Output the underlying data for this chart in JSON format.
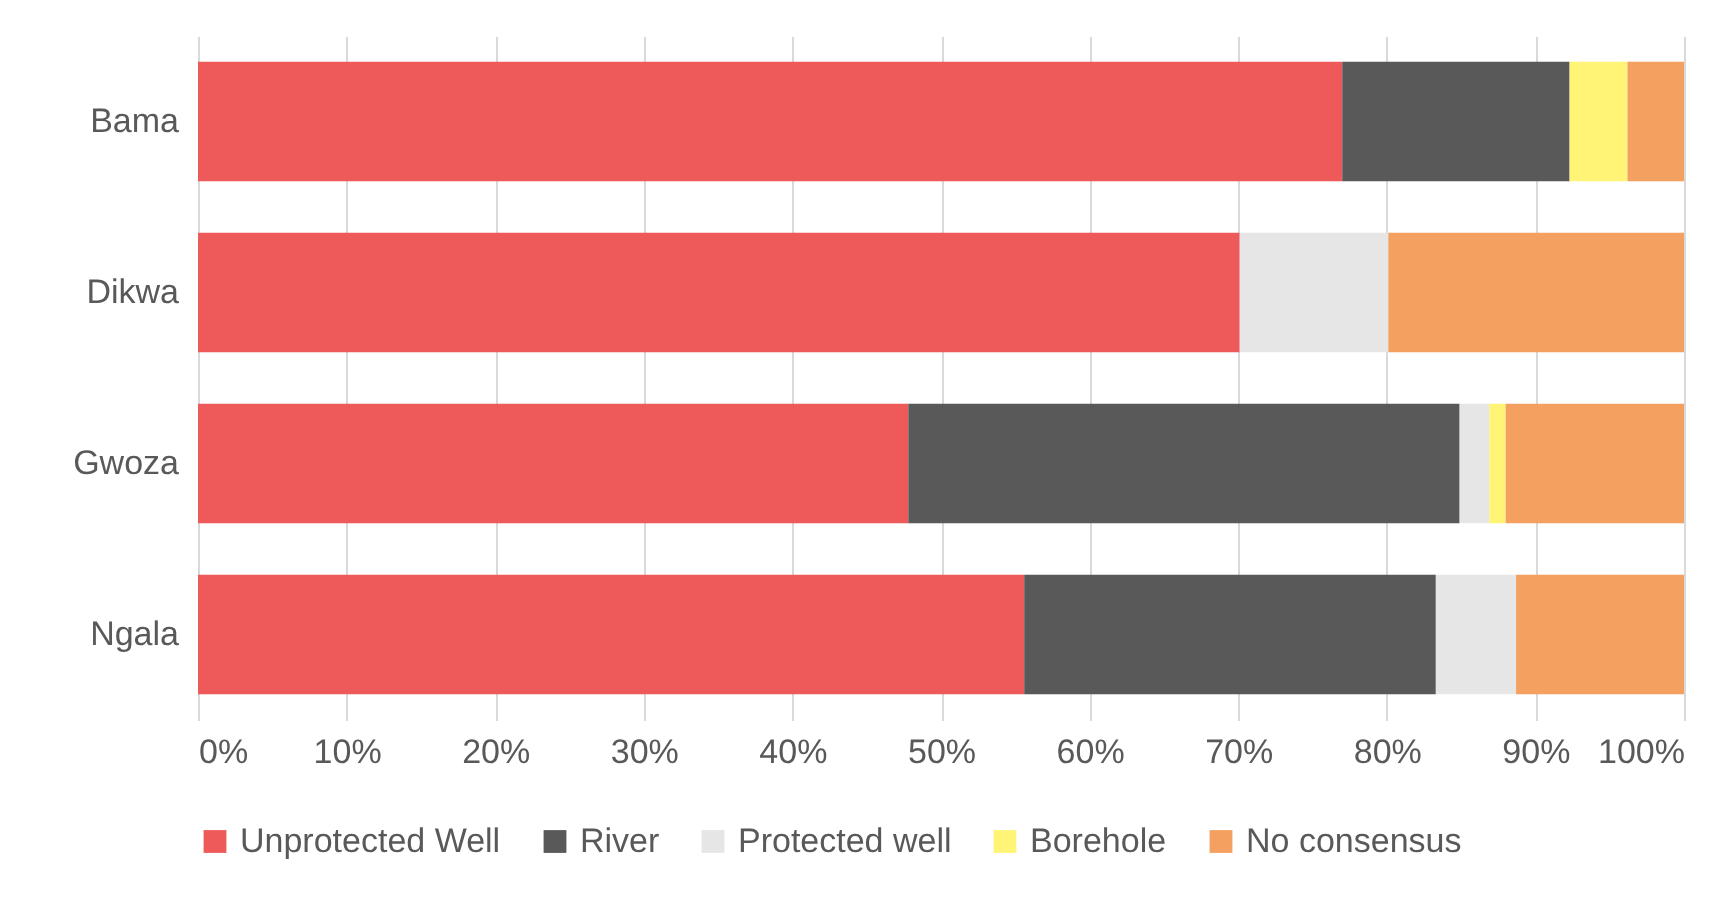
{
  "chart_data": {
    "type": "bar",
    "orientation": "horizontal",
    "stacked": true,
    "categories": [
      "Bama",
      "Dikwa",
      "Gwoza",
      "Ngala"
    ],
    "series": [
      {
        "name": "Unprotected Well",
        "color": "#ee5a5a",
        "values": [
          77.0,
          70.1,
          47.8,
          55.6
        ]
      },
      {
        "name": "River",
        "color": "#595959",
        "values": [
          15.3,
          null,
          37.1,
          27.7
        ]
      },
      {
        "name": "Protected well",
        "color": "#e6e6e6",
        "values": [
          null,
          10.0,
          2.0,
          5.4
        ]
      },
      {
        "name": "Borehole",
        "color": "#fff475",
        "values": [
          3.9,
          null,
          1.1,
          null
        ]
      },
      {
        "name": "No consensus",
        "color": "#f4a060",
        "values": [
          3.8,
          19.9,
          12.0,
          11.3
        ]
      }
    ],
    "xlim": [
      0,
      100
    ],
    "xticks": [
      {
        "value": 0,
        "label": "0%"
      },
      {
        "value": 10,
        "label": "10%"
      },
      {
        "value": 20,
        "label": "20%"
      },
      {
        "value": 30,
        "label": "30%"
      },
      {
        "value": 40,
        "label": "40%"
      },
      {
        "value": 50,
        "label": "50%"
      },
      {
        "value": 60,
        "label": "60%"
      },
      {
        "value": 70,
        "label": "70%"
      },
      {
        "value": 80,
        "label": "80%"
      },
      {
        "value": 90,
        "label": "90%"
      },
      {
        "value": 100,
        "label": "100%"
      }
    ],
    "grid": "x",
    "legend": "bottom"
  }
}
